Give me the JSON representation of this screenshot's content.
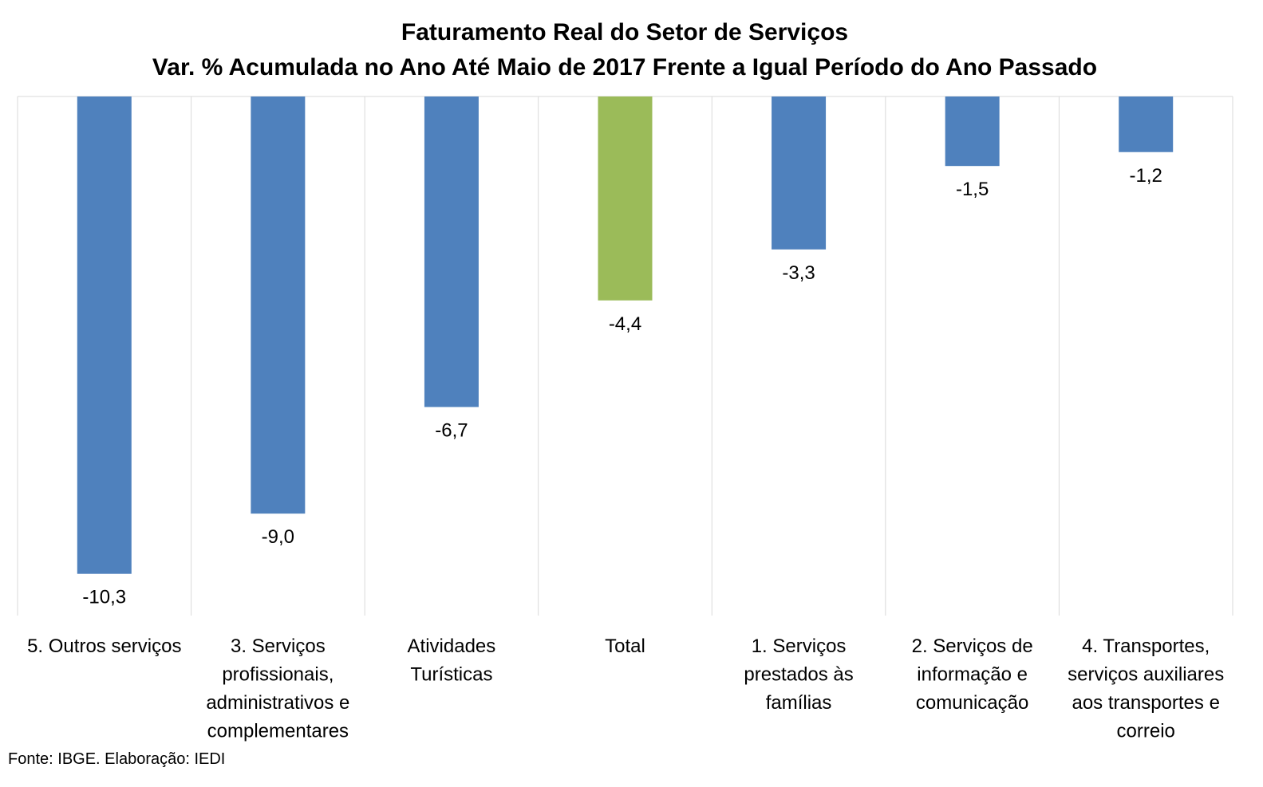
{
  "chart_data": {
    "type": "bar",
    "title": "Faturamento Real do Setor de Serviços",
    "subtitle": "Var. % Acumulada no Ano Até Maio de 2017 Frente a Igual Período do Ano Passado",
    "xlabel": "",
    "ylabel": "",
    "ylim": [
      -11.2,
      0
    ],
    "grid": "vertical",
    "legend": "none",
    "categories": [
      [
        "5. Outros serviços"
      ],
      [
        "3. Serviços",
        "profissionais,",
        "administrativos e",
        "complementares"
      ],
      [
        "Atividades",
        "Turísticas"
      ],
      [
        "Total"
      ],
      [
        "1. Serviços",
        "prestados às",
        "famílias"
      ],
      [
        "2. Serviços de",
        "informação e",
        "comunicação"
      ],
      [
        "4. Transportes,",
        "serviços auxiliares",
        "aos transportes e",
        "correio"
      ]
    ],
    "values": [
      -10.3,
      -9.0,
      -6.7,
      -4.4,
      -3.3,
      -1.5,
      -1.2
    ],
    "value_labels": [
      "-10,3",
      "-9,0",
      "-6,7",
      "-4,4",
      "-3,3",
      "-1,5",
      "-1,2"
    ],
    "colors": [
      "#4F81BD",
      "#4F81BD",
      "#4F81BD",
      "#9BBB59",
      "#4F81BD",
      "#4F81BD",
      "#4F81BD"
    ],
    "gridline_color": "#D9D9D9"
  },
  "footer": {
    "source": "Fonte: IBGE. Elaboração: IEDI"
  }
}
